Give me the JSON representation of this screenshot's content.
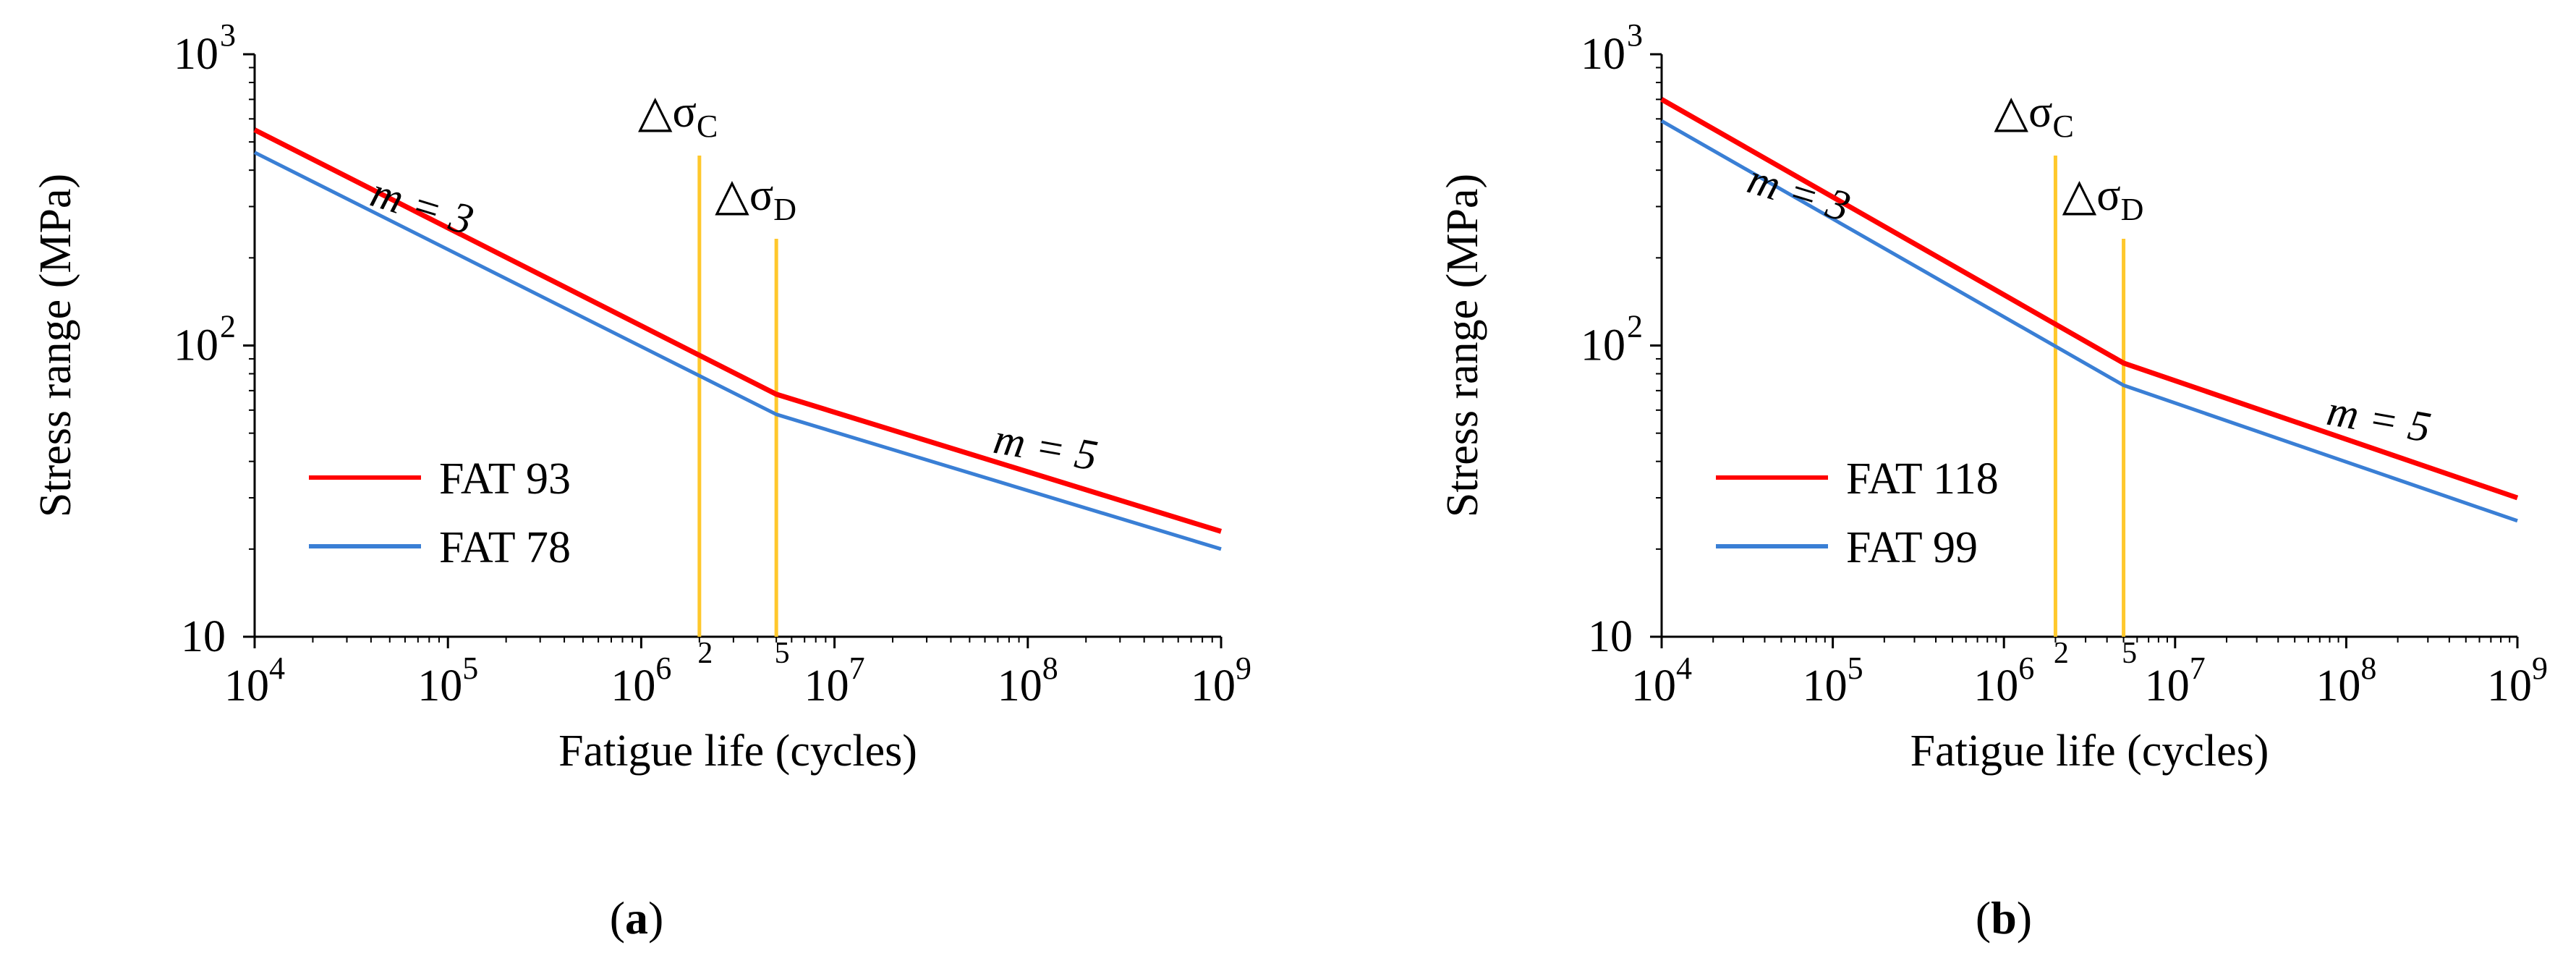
{
  "colors": {
    "fat_high": "#ff0000",
    "fat_low": "#3a7fd5",
    "threshold": "#ffc82c",
    "axis": "#000000"
  },
  "chart_data": [
    {
      "type": "line",
      "panel_label": "(a)",
      "xlabel": "Fatigue life (cycles)",
      "ylabel": "Stress range (MPa)",
      "xscale": "log",
      "yscale": "log",
      "xlim": [
        10000,
        1000000000
      ],
      "ylim": [
        10,
        1000
      ],
      "x_ticks": [
        {
          "value": 10000,
          "base": "10",
          "exp": "4"
        },
        {
          "value": 100000,
          "base": "10",
          "exp": "5"
        },
        {
          "value": 1000000,
          "base": "10",
          "exp": "6"
        },
        {
          "value": 10000000,
          "base": "10",
          "exp": "7"
        },
        {
          "value": 100000000,
          "base": "10",
          "exp": "8"
        },
        {
          "value": 1000000000,
          "base": "10",
          "exp": "9"
        }
      ],
      "y_ticks": [
        {
          "value": 10,
          "base": "10",
          "exp": ""
        },
        {
          "value": 100,
          "base": "10",
          "exp": "2"
        },
        {
          "value": 1000,
          "base": "10",
          "exp": "3"
        }
      ],
      "grid": false,
      "legend_position": "lower-left",
      "series": [
        {
          "name": "FAT 93",
          "color_key": "fat_high",
          "x": [
            10000,
            5000000,
            1000000000
          ],
          "y": [
            550,
            68,
            23
          ]
        },
        {
          "name": "FAT 78",
          "color_key": "fat_low",
          "x": [
            10000,
            5000000,
            1000000000
          ],
          "y": [
            460,
            58,
            20
          ]
        }
      ],
      "vlines": [
        {
          "x": 2000000,
          "base": "△σ",
          "sub": "C",
          "tick_label": "2"
        },
        {
          "x": 5000000,
          "base": "△σ",
          "sub": "D",
          "tick_label": "5"
        }
      ],
      "annotations": [
        {
          "text": "m = 3",
          "x": 70000,
          "y": 270
        },
        {
          "text": "m = 5",
          "x": 120000000,
          "y": 40
        }
      ]
    },
    {
      "type": "line",
      "panel_label": "(b)",
      "xlabel": "Fatigue life (cycles)",
      "ylabel": "Stress range (MPa)",
      "xscale": "log",
      "yscale": "log",
      "xlim": [
        10000,
        1000000000
      ],
      "ylim": [
        10,
        1000
      ],
      "x_ticks": [
        {
          "value": 10000,
          "base": "10",
          "exp": "4"
        },
        {
          "value": 100000,
          "base": "10",
          "exp": "5"
        },
        {
          "value": 1000000,
          "base": "10",
          "exp": "6"
        },
        {
          "value": 10000000,
          "base": "10",
          "exp": "7"
        },
        {
          "value": 100000000,
          "base": "10",
          "exp": "8"
        },
        {
          "value": 1000000000,
          "base": "10",
          "exp": "9"
        }
      ],
      "y_ticks": [
        {
          "value": 10,
          "base": "10",
          "exp": ""
        },
        {
          "value": 100,
          "base": "10",
          "exp": "2"
        },
        {
          "value": 1000,
          "base": "10",
          "exp": "3"
        }
      ],
      "grid": false,
      "legend_position": "lower-left",
      "series": [
        {
          "name": "FAT 118",
          "color_key": "fat_high",
          "x": [
            10000,
            5000000,
            1000000000
          ],
          "y": [
            700,
            87,
            30
          ]
        },
        {
          "name": "FAT 99",
          "color_key": "fat_low",
          "x": [
            10000,
            5000000,
            1000000000
          ],
          "y": [
            590,
            73,
            25
          ]
        }
      ],
      "vlines": [
        {
          "x": 2000000,
          "base": "△σ",
          "sub": "C",
          "tick_label": "2"
        },
        {
          "x": 5000000,
          "base": "△σ",
          "sub": "D",
          "tick_label": "5"
        }
      ],
      "annotations": [
        {
          "text": "m = 3",
          "x": 60000,
          "y": 300
        },
        {
          "text": "m = 5",
          "x": 150000000,
          "y": 50
        }
      ]
    }
  ]
}
